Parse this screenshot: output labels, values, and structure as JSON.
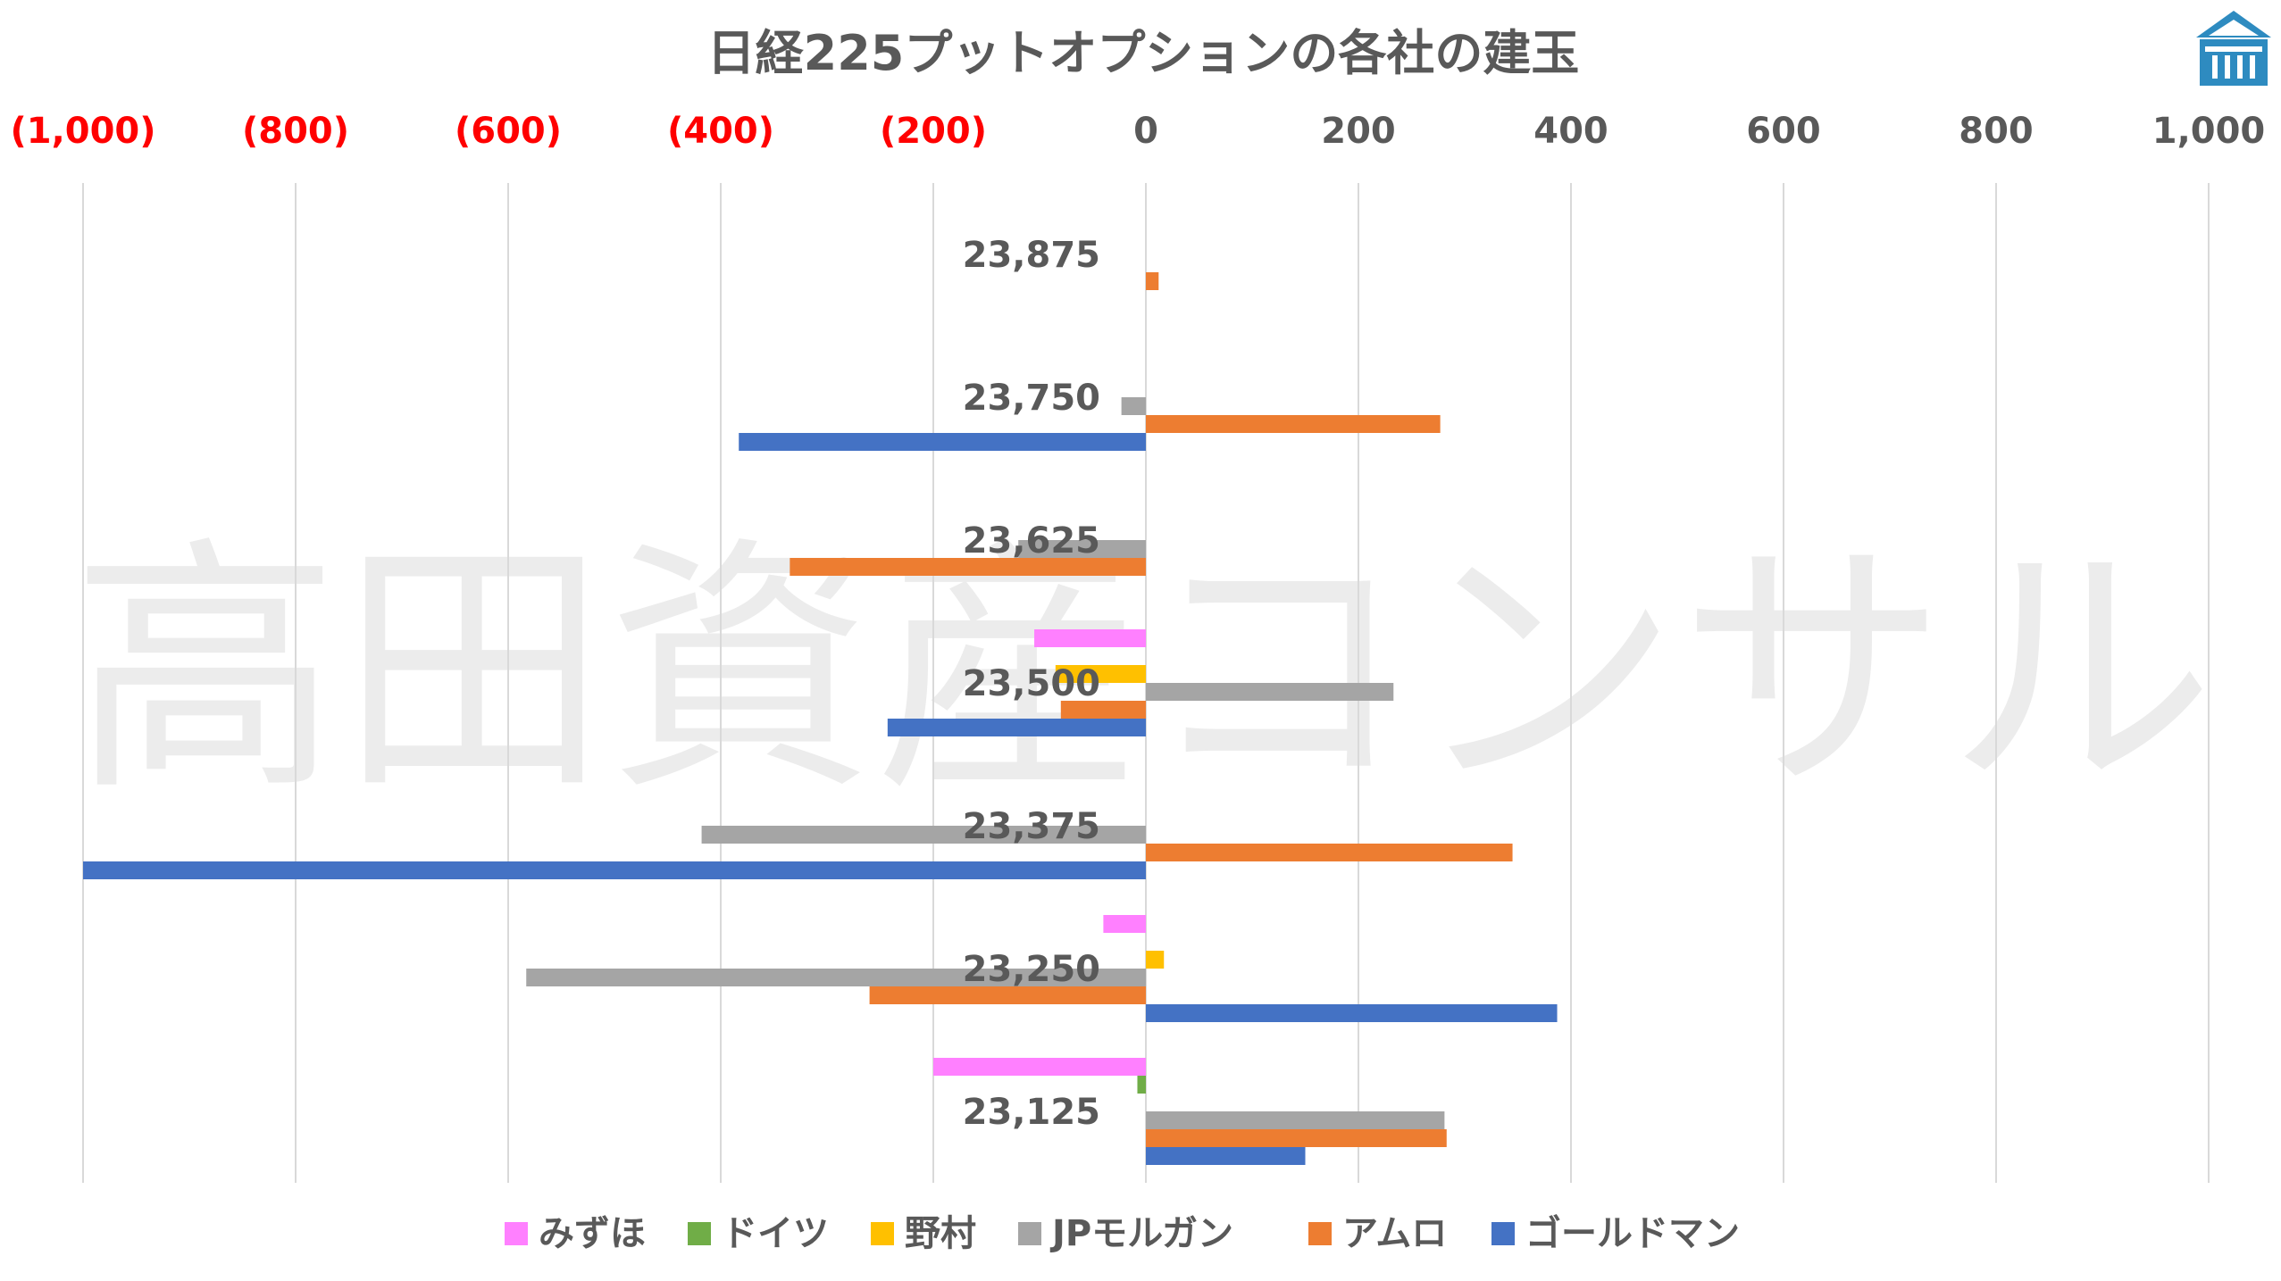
{
  "chart_data": {
    "type": "bar",
    "orientation": "horizontal",
    "title": "日経225プットオプションの各社の建玉",
    "watermark": "高田資産コンサル",
    "categories": [
      "23,875",
      "23,750",
      "23,625",
      "23,500",
      "23,375",
      "23,250",
      "23,125"
    ],
    "series": [
      {
        "name": "みずほ",
        "color": "#FF80FF",
        "values": [
          0,
          0,
          0,
          -105,
          0,
          -40,
          -200
        ]
      },
      {
        "name": "ドイツ",
        "color": "#70AD47",
        "values": [
          0,
          0,
          0,
          0,
          0,
          0,
          -8
        ]
      },
      {
        "name": "野村",
        "color": "#FFC000",
        "values": [
          0,
          0,
          0,
          -85,
          0,
          17,
          0
        ]
      },
      {
        "name": "JPモルガン",
        "color": "#A5A5A5",
        "values": [
          0,
          -23,
          -120,
          233,
          -418,
          -583,
          281
        ]
      },
      {
        "name": "アムロ",
        "color": "#ED7D31",
        "values": [
          12,
          277,
          -335,
          -80,
          345,
          -260,
          283
        ]
      },
      {
        "name": "ゴールドマン",
        "color": "#4472C4",
        "values": [
          0,
          -383,
          0,
          -243,
          -1000,
          387,
          150
        ]
      }
    ],
    "xlim": [
      -1000,
      1000
    ],
    "xticks": [
      -1000,
      -800,
      -600,
      -400,
      -200,
      0,
      200,
      400,
      600,
      800,
      1000
    ],
    "xtick_labels": [
      "(1,000)",
      "(800)",
      "(600)",
      "(400)",
      "(200)",
      "0",
      "200",
      "400",
      "600",
      "800",
      "1,000"
    ],
    "negative_tick_color": "#FF0000",
    "positive_tick_color": "#595959",
    "xaxis_position": "top",
    "grid": true,
    "legend_position": "bottom"
  },
  "logo": {
    "icon": "building-logo-icon",
    "color": "#2E8BC0"
  }
}
